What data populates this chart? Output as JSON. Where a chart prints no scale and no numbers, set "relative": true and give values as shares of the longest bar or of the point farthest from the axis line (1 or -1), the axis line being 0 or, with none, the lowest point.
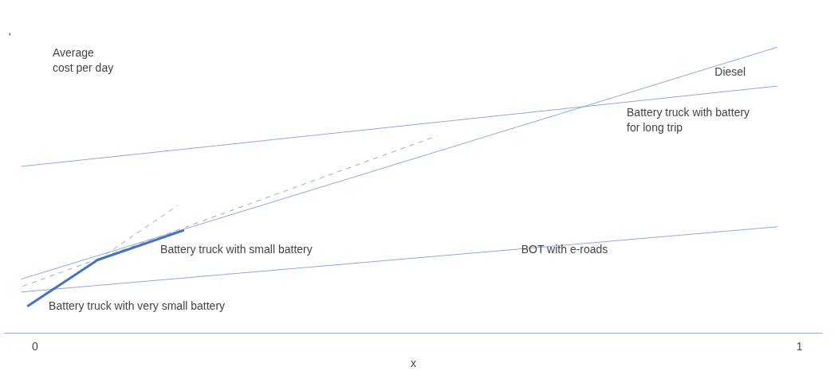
{
  "chart_data": {
    "type": "line",
    "relative": true,
    "xlabel": "x",
    "ylabel": "Average\ncost per day",
    "xlim": [
      -0.04,
      1.03
    ],
    "xticks": [
      0,
      1
    ],
    "grid": false,
    "marker": "none",
    "series": [
      {
        "x": [
          -0.018,
          0.971
        ],
        "values": [
          0.189,
          1.0
        ],
        "color": "#8faadc"
      },
      {
        "x": [
          -0.018,
          0.971
        ],
        "values": [
          0.583,
          0.864
        ],
        "color": "#8faadc"
      },
      {
        "x": [
          -0.018,
          0.971
        ],
        "values": [
          0.144,
          0.372
        ],
        "color": "#8faadc"
      },
      {
        "x": [
          -0.016,
          0.526
        ],
        "values": [
          0.164,
          0.69
        ],
        "color": "#a6a6a6",
        "line_style": "dashed"
      },
      {
        "x": [
          0.082,
          0.187
        ],
        "values": [
          0.256,
          0.447
        ],
        "color": "#a6a6a6",
        "line_style": "dashed"
      },
      {
        "x": [
          -0.01,
          0.082,
          0.195
        ],
        "values": [
          0.094,
          0.256,
          0.36
        ],
        "color": "#4472c4"
      }
    ],
    "annotations": [
      ",",
      "Diesel",
      "Battery truck with battery\nfor long trip",
      "Battery truck with small battery",
      "BOT with e-roads",
      "Battery truck with very small battery"
    ]
  }
}
